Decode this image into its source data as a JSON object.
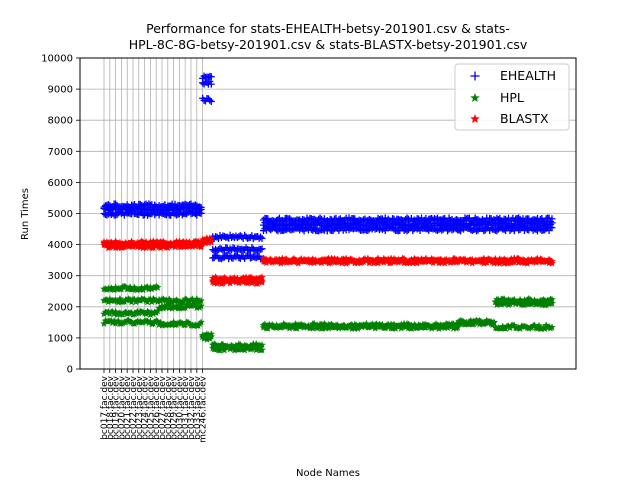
{
  "chart_data": {
    "type": "scatter",
    "title_lines": [
      "Performance for stats-EHEALTH-betsy-201901.csv & stats-",
      "HPL-8C-8G-betsy-201901.csv & stats-BLASTX-betsy-201901.csv"
    ],
    "xlabel": "Node Names",
    "ylabel": "Run Times",
    "ylim": [
      0,
      10000
    ],
    "yticks": [
      0,
      1000,
      2000,
      3000,
      4000,
      5000,
      6000,
      7000,
      8000,
      9000,
      10000
    ],
    "grid": "y-axis plus x-gridlines at labeled nodes",
    "legend_position": "top-right",
    "node_count": 310,
    "labeled_node_count": 18,
    "x_tick_labels": [
      "bc017.fac.dev",
      "bc018.fac.dev",
      "bc019.fac.dev",
      "bc020.fac.dev",
      "bc021.fac.dev",
      "bc022.fac.dev",
      "bc023.fac.dev",
      "bc024.fac.dev",
      "bc025.fac.dev",
      "bc026.fac.dev",
      "bc027.fac.dev",
      "bc028.fac.dev",
      "bc029.fac.dev",
      "bc030.fac.dev",
      "bc031.fac.dev",
      "bc032.fac.dev",
      "bc033.fac.dev",
      "mc246.fac.dev"
    ],
    "series": [
      {
        "name": "EHEALTH",
        "marker": "plus",
        "color": "#0000ff",
        "segments": [
          {
            "node_range": [
              0,
              68
            ],
            "levels": [
              5000,
              5150,
              5250
            ]
          },
          {
            "node_range": [
              68,
              75
            ],
            "levels": [
              8650,
              9200,
              9400
            ]
          },
          {
            "node_range": [
              75,
              110
            ],
            "levels": [
              3600,
              3850,
              4250
            ]
          },
          {
            "node_range": [
              110,
              310
            ],
            "levels": [
              4500,
              4650,
              4800
            ]
          }
        ]
      },
      {
        "name": "HPL",
        "marker": "star",
        "color": "#008000",
        "segments": [
          {
            "node_range": [
              0,
              38
            ],
            "levels": [
              1500,
              1800,
              2200,
              2600
            ]
          },
          {
            "node_range": [
              38,
              68
            ],
            "levels": [
              1450,
              2000,
              2200
            ]
          },
          {
            "node_range": [
              68,
              75
            ],
            "levels": [
              1000,
              1100
            ]
          },
          {
            "node_range": [
              75,
              110
            ],
            "levels": [
              650,
              750
            ]
          },
          {
            "node_range": [
              110,
              245
            ],
            "levels": [
              1350,
              1400
            ]
          },
          {
            "node_range": [
              245,
              270
            ],
            "levels": [
              1480,
              1500
            ]
          },
          {
            "node_range": [
              270,
              310
            ],
            "levels": [
              1350,
              2100,
              2200
            ]
          }
        ]
      },
      {
        "name": "BLASTX",
        "marker": "star",
        "color": "#ff0000",
        "segments": [
          {
            "node_range": [
              0,
              68
            ],
            "levels": [
              3950,
              4000,
              4050
            ]
          },
          {
            "node_range": [
              68,
              75
            ],
            "levels": [
              4100,
              4150
            ]
          },
          {
            "node_range": [
              75,
              110
            ],
            "levels": [
              2800,
              2850,
              2900
            ]
          },
          {
            "node_range": [
              110,
              310
            ],
            "levels": [
              3450,
              3500
            ]
          }
        ]
      }
    ]
  }
}
